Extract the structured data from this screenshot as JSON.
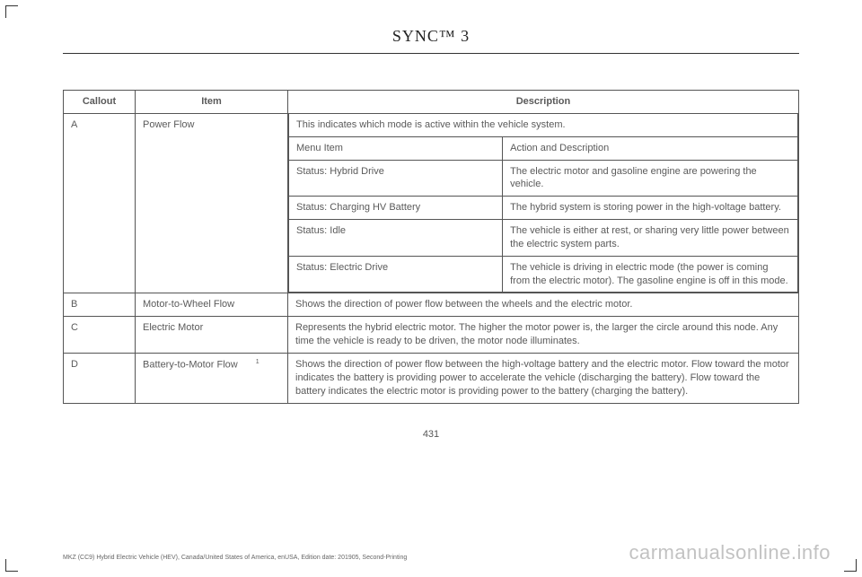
{
  "title": "SYNC™ 3",
  "page_number": "431",
  "footer": "MKZ (CC9) Hybrid Electric Vehicle (HEV), Canada/United States of America, enUSA, Edition date: 201905, Second-Printing",
  "watermark": "carmanualsonline.info",
  "table": {
    "headers": {
      "callout": "Callout",
      "item": "Item",
      "description": "Description"
    },
    "rows": [
      {
        "callout": "A",
        "item": "Power Flow",
        "desc_intro": "This indicates which mode is active within the vehicle system.",
        "sub": [
          {
            "left": "Menu Item",
            "right": "Action and Description"
          },
          {
            "left": "Status: Hybrid Drive",
            "right": "The electric motor and gasoline engine are powering the vehicle."
          },
          {
            "left": "Status: Charging HV Battery",
            "right": "The hybrid system is storing power in the high-voltage battery."
          },
          {
            "left": "Status: Idle",
            "right": "The vehicle is either at rest, or sharing very little power between the electric system parts."
          },
          {
            "left": "Status: Electric Drive",
            "right": "The vehicle is driving in electric mode (the power is coming from the electric motor). The gasoline engine is off in this mode."
          }
        ]
      },
      {
        "callout": "B",
        "item": "Motor-to-Wheel Flow",
        "description": "Shows the direction of power flow between the wheels and the electric motor."
      },
      {
        "callout": "C",
        "item": "Electric Motor",
        "description": "Represents the hybrid electric motor. The higher the motor power is, the larger the circle around this node. Any time the vehicle is ready to be driven, the motor node illuminates."
      },
      {
        "callout": "D",
        "item": "Battery-to-Motor Flow",
        "item_sup": "1",
        "description": "Shows the direction of power flow between the high-voltage battery and the electric motor. Flow toward the motor indicates the battery is providing power to accelerate the vehicle (discharging the battery). Flow toward the battery indicates the electric motor is providing power to the battery (charging the battery)."
      }
    ]
  }
}
